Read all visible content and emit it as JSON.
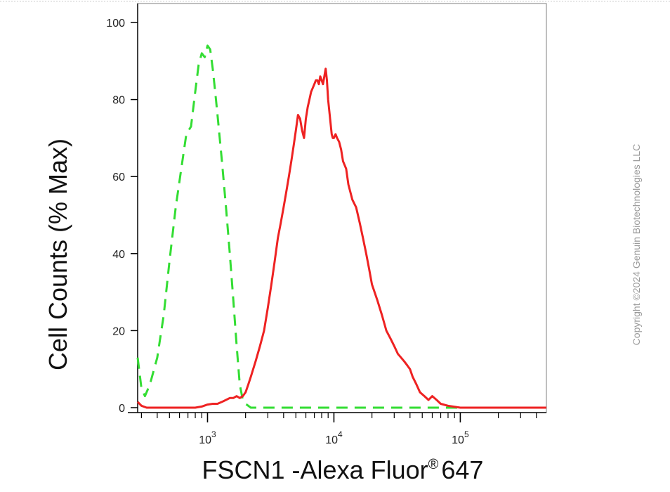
{
  "chart_data": {
    "type": "line",
    "xlabel": "FSCN1 -Alexa Fluor",
    "xlabel_superscript": "®",
    "xlabel_suffix": "647",
    "ylabel": "Cell Counts (% Max)",
    "x_scale": "log",
    "xlim": [
      280,
      480000
    ],
    "ylim": [
      -2,
      104
    ],
    "x_tick_labels": [
      {
        "base": "10",
        "exp": "3",
        "value": 1000
      },
      {
        "base": "10",
        "exp": "4",
        "value": 10000
      },
      {
        "base": "10",
        "exp": "5",
        "value": 100000
      }
    ],
    "y_ticks": [
      0,
      20,
      40,
      60,
      80,
      100
    ],
    "grid": false,
    "series": [
      {
        "color": "#33dd33",
        "style": "dashed",
        "x": [
          280,
          300,
          320,
          350,
          400,
          450,
          500,
          560,
          620,
          680,
          740,
          800,
          850,
          900,
          950,
          1000,
          1050,
          1100,
          1150,
          1200,
          1300,
          1400,
          1500,
          1600,
          1700,
          1800,
          1900,
          2000,
          2100,
          2200,
          2400,
          3000,
          10000,
          480000
        ],
        "y": [
          13,
          5,
          3,
          6,
          13,
          24,
          38,
          52,
          62,
          71,
          73,
          82,
          89,
          92,
          91,
          94,
          93,
          88,
          82,
          76,
          64,
          52,
          40,
          28,
          16,
          6,
          2,
          1,
          0.5,
          0,
          0,
          0,
          0,
          0
        ]
      },
      {
        "color": "#ee2222",
        "style": "solid",
        "x": [
          280,
          300,
          330,
          400,
          500,
          600,
          700,
          800,
          900,
          1000,
          1100,
          1200,
          1300,
          1400,
          1500,
          1600,
          1700,
          1800,
          1900,
          2000,
          2100,
          2200,
          2400,
          2600,
          2800,
          3000,
          3200,
          3400,
          3600,
          3800,
          4000,
          4200,
          4400,
          4600,
          4800,
          5000,
          5200,
          5400,
          5600,
          5800,
          6000,
          6200,
          6400,
          6600,
          6800,
          7000,
          7200,
          7400,
          7600,
          7800,
          8000,
          8200,
          8400,
          8600,
          8800,
          9000,
          9200,
          9400,
          9600,
          9800,
          10000,
          10300,
          10600,
          11000,
          11400,
          11800,
          12500,
          13000,
          14000,
          15000,
          16000,
          17000,
          18000,
          19000,
          20000,
          22000,
          24000,
          26000,
          28000,
          30000,
          32000,
          34000,
          36000,
          38000,
          40000,
          42000,
          45000,
          48000,
          52000,
          56000,
          60000,
          65000,
          70000,
          80000,
          100000,
          150000,
          480000
        ],
        "y": [
          1.5,
          0.5,
          0,
          0,
          0,
          0,
          0,
          0,
          0.3,
          0.8,
          1,
          1,
          1.5,
          2,
          2.5,
          2.5,
          3,
          2.5,
          3,
          4,
          6,
          8,
          12,
          16,
          20,
          26,
          32,
          38,
          44,
          48,
          52,
          56,
          60,
          64,
          68,
          72,
          76,
          75,
          72,
          70,
          75,
          78,
          80,
          82,
          83,
          84,
          85,
          85,
          84,
          86,
          85,
          84,
          86,
          88,
          85,
          80,
          77,
          74,
          71,
          70,
          70,
          71,
          70,
          69,
          67,
          64,
          62,
          58,
          54,
          52,
          48,
          44,
          40,
          36,
          32,
          28,
          24,
          20,
          18,
          16,
          14,
          13,
          12,
          11,
          10,
          8,
          6,
          4,
          3,
          2,
          3,
          2,
          1,
          0.5,
          0,
          0,
          0
        ]
      }
    ]
  },
  "watermark": "Copyright ©2024 Genuin Biotechnologies LLC"
}
